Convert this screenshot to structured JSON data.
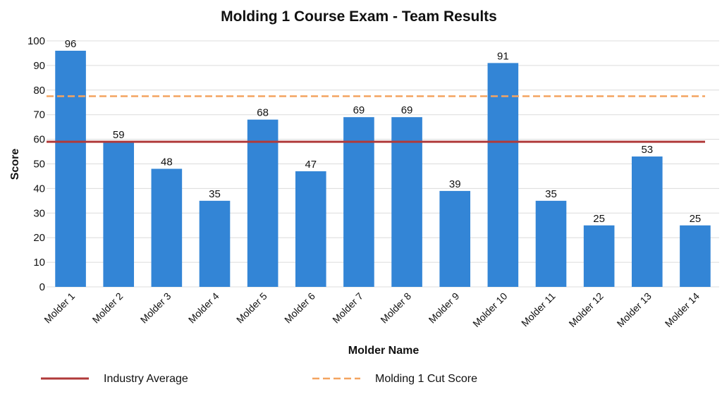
{
  "chart_data": {
    "type": "bar",
    "title": "Molding 1 Course Exam - Team Results",
    "xlabel": "Molder Name",
    "ylabel": "Score",
    "ylim": [
      0,
      100
    ],
    "yticks": [
      0,
      10,
      20,
      30,
      40,
      50,
      60,
      70,
      80,
      90,
      100
    ],
    "categories": [
      "Molder 1",
      "Molder 2",
      "Molder 3",
      "Molder 4",
      "Molder 5",
      "Molder 6",
      "Molder 7",
      "Molder 8",
      "Molder 9",
      "Molder 10",
      "Molder 11",
      "Molder 12",
      "Molder 13",
      "Molder 14"
    ],
    "values": [
      96,
      59,
      48,
      35,
      68,
      47,
      69,
      69,
      39,
      91,
      35,
      25,
      53,
      25
    ],
    "bar_color": "#3385d6",
    "grid": true,
    "data_labels": true,
    "reference_lines": [
      {
        "name": "Industry Average",
        "value": 59,
        "color": "#b03a3a",
        "style": "solid"
      },
      {
        "name": "Molding 1 Cut Score",
        "value": 77.5,
        "color": "#f4a460",
        "style": "dashed"
      }
    ],
    "legend_position": "bottom"
  }
}
